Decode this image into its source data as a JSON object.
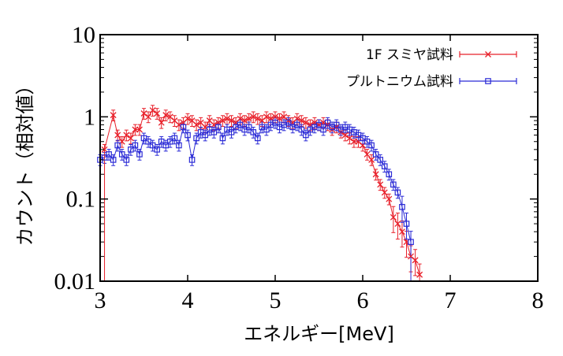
{
  "chart_data": {
    "type": "scatter",
    "title": "",
    "xlabel": "エネルギー[MeV]",
    "ylabel": "カウント（相対値）",
    "xlim": [
      3,
      8
    ],
    "ylim": [
      0.01,
      10
    ],
    "y_scale": "log",
    "x_ticks": [
      "3",
      "4",
      "5",
      "6",
      "7",
      "8"
    ],
    "y_ticks": [
      "0.01",
      "0.1",
      "1",
      "10"
    ],
    "grid": false,
    "legend_position": "top-right",
    "error_bars": true,
    "series": [
      {
        "name": "1F スミヤ試料",
        "color": "#e8202a",
        "marker": "x",
        "points": [
          [
            3.05,
            0.4
          ],
          [
            3.15,
            1.05
          ],
          [
            3.2,
            0.6
          ],
          [
            3.25,
            0.5
          ],
          [
            3.3,
            0.6
          ],
          [
            3.35,
            0.55
          ],
          [
            3.4,
            0.7
          ],
          [
            3.45,
            0.7
          ],
          [
            3.5,
            1.1
          ],
          [
            3.55,
            1.0
          ],
          [
            3.6,
            1.2
          ],
          [
            3.65,
            1.1
          ],
          [
            3.7,
            0.85
          ],
          [
            3.75,
            1.05
          ],
          [
            3.8,
            1.0
          ],
          [
            3.85,
            0.9
          ],
          [
            3.9,
            0.8
          ],
          [
            3.95,
            0.85
          ],
          [
            4.0,
            0.95
          ],
          [
            4.05,
            0.9
          ],
          [
            4.1,
            0.8
          ],
          [
            4.15,
            0.85
          ],
          [
            4.2,
            0.75
          ],
          [
            4.25,
            0.9
          ],
          [
            4.3,
            0.8
          ],
          [
            4.35,
            0.85
          ],
          [
            4.4,
            0.9
          ],
          [
            4.45,
            0.95
          ],
          [
            4.5,
            0.9
          ],
          [
            4.55,
            0.85
          ],
          [
            4.6,
            0.95
          ],
          [
            4.65,
            0.9
          ],
          [
            4.7,
            0.95
          ],
          [
            4.75,
            1.0
          ],
          [
            4.8,
            0.95
          ],
          [
            4.85,
            0.9
          ],
          [
            4.9,
            1.0
          ],
          [
            4.95,
            0.95
          ],
          [
            5.0,
            1.0
          ],
          [
            5.05,
            0.95
          ],
          [
            5.1,
            1.0
          ],
          [
            5.15,
            0.9
          ],
          [
            5.2,
            0.85
          ],
          [
            5.25,
            0.95
          ],
          [
            5.3,
            0.9
          ],
          [
            5.35,
            0.85
          ],
          [
            5.4,
            0.8
          ],
          [
            5.45,
            0.85
          ],
          [
            5.5,
            0.8
          ],
          [
            5.55,
            0.85
          ],
          [
            5.6,
            0.8
          ],
          [
            5.65,
            0.7
          ],
          [
            5.7,
            0.75
          ],
          [
            5.75,
            0.65
          ],
          [
            5.8,
            0.6
          ],
          [
            5.85,
            0.55
          ],
          [
            5.9,
            0.5
          ],
          [
            5.95,
            0.5
          ],
          [
            6.0,
            0.45
          ],
          [
            6.05,
            0.35
          ],
          [
            6.1,
            0.3
          ],
          [
            6.15,
            0.2
          ],
          [
            6.2,
            0.15
          ],
          [
            6.25,
            0.12
          ],
          [
            6.3,
            0.1
          ],
          [
            6.35,
            0.06
          ],
          [
            6.4,
            0.05
          ],
          [
            6.45,
            0.04
          ],
          [
            6.5,
            0.03
          ],
          [
            6.55,
            0.02
          ],
          [
            6.6,
            0.018
          ],
          [
            6.65,
            0.012
          ]
        ]
      },
      {
        "name": "プルトニウム試料",
        "color": "#2a2ad6",
        "marker": "square",
        "points": [
          [
            3.0,
            0.3
          ],
          [
            3.05,
            0.32
          ],
          [
            3.1,
            0.35
          ],
          [
            3.15,
            0.3
          ],
          [
            3.2,
            0.45
          ],
          [
            3.25,
            0.35
          ],
          [
            3.3,
            0.3
          ],
          [
            3.35,
            0.4
          ],
          [
            3.4,
            0.45
          ],
          [
            3.45,
            0.35
          ],
          [
            3.5,
            0.55
          ],
          [
            3.55,
            0.5
          ],
          [
            3.6,
            0.45
          ],
          [
            3.65,
            0.4
          ],
          [
            3.7,
            0.5
          ],
          [
            3.75,
            0.45
          ],
          [
            3.8,
            0.5
          ],
          [
            3.85,
            0.55
          ],
          [
            3.9,
            0.45
          ],
          [
            3.95,
            0.75
          ],
          [
            4.0,
            0.6
          ],
          [
            4.05,
            0.3
          ],
          [
            4.1,
            0.55
          ],
          [
            4.15,
            0.65
          ],
          [
            4.2,
            0.6
          ],
          [
            4.25,
            0.7
          ],
          [
            4.3,
            0.65
          ],
          [
            4.35,
            0.75
          ],
          [
            4.4,
            0.55
          ],
          [
            4.45,
            0.7
          ],
          [
            4.5,
            0.65
          ],
          [
            4.55,
            0.75
          ],
          [
            4.6,
            0.8
          ],
          [
            4.65,
            0.7
          ],
          [
            4.7,
            0.75
          ],
          [
            4.75,
            0.65
          ],
          [
            4.8,
            0.55
          ],
          [
            4.85,
            0.75
          ],
          [
            4.9,
            0.7
          ],
          [
            4.95,
            0.8
          ],
          [
            5.0,
            0.85
          ],
          [
            5.05,
            0.75
          ],
          [
            5.1,
            0.8
          ],
          [
            5.15,
            0.85
          ],
          [
            5.2,
            0.75
          ],
          [
            5.25,
            0.8
          ],
          [
            5.3,
            0.7
          ],
          [
            5.35,
            0.6
          ],
          [
            5.4,
            0.7
          ],
          [
            5.45,
            0.75
          ],
          [
            5.5,
            0.8
          ],
          [
            5.55,
            0.7
          ],
          [
            5.6,
            0.85
          ],
          [
            5.65,
            0.75
          ],
          [
            5.7,
            0.8
          ],
          [
            5.75,
            0.7
          ],
          [
            5.8,
            0.75
          ],
          [
            5.85,
            0.7
          ],
          [
            5.9,
            0.65
          ],
          [
            5.95,
            0.6
          ],
          [
            6.0,
            0.55
          ],
          [
            6.05,
            0.5
          ],
          [
            6.1,
            0.45
          ],
          [
            6.15,
            0.35
          ],
          [
            6.2,
            0.3
          ],
          [
            6.25,
            0.25
          ],
          [
            6.3,
            0.2
          ],
          [
            6.35,
            0.15
          ],
          [
            6.4,
            0.12
          ],
          [
            6.45,
            0.08
          ],
          [
            6.5,
            0.05
          ],
          [
            6.55,
            0.03
          ]
        ]
      }
    ]
  }
}
